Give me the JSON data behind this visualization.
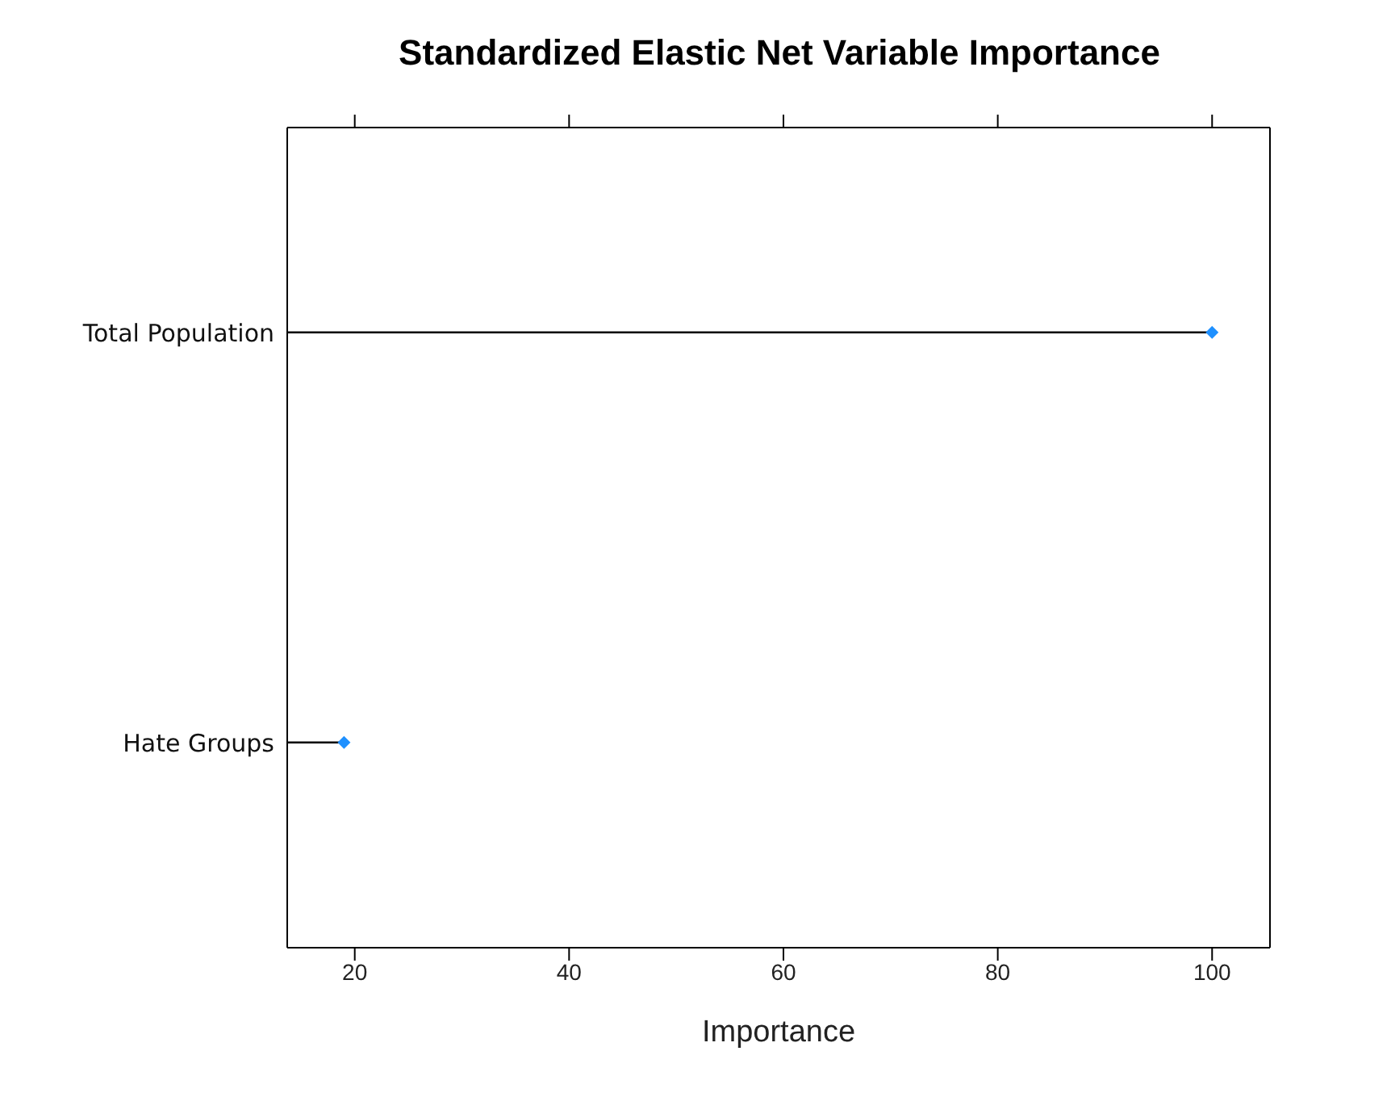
{
  "chart_data": {
    "type": "lollipop",
    "orientation": "horizontal",
    "title": "Standardized Elastic Net Variable Importance",
    "xlabel": "Importance",
    "categories": [
      "Total Population",
      "Hate Groups"
    ],
    "series": [
      {
        "color": "#1e90ff",
        "values": [
          100,
          19
        ]
      }
    ],
    "xlim": [
      13.7,
      105.4
    ],
    "xticks": [
      20,
      40,
      60,
      80,
      100
    ],
    "marker": "diamond",
    "grid": false
  }
}
